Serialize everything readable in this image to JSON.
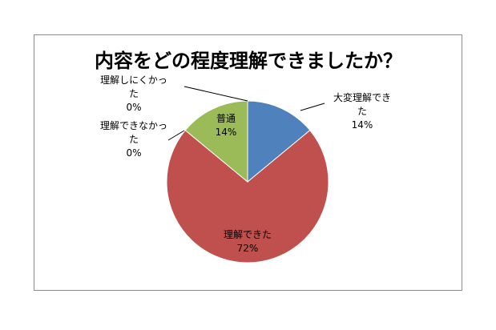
{
  "chart_data": {
    "type": "pie",
    "title": "内容をどの程度理解できましたか？",
    "slices": [
      {
        "label_lines": [
          "大変理解でき",
          "た"
        ],
        "value_label": "14%",
        "value": 14,
        "color": "#4f81bd"
      },
      {
        "label_lines": [
          "理解できた"
        ],
        "value_label": "72%",
        "value": 72,
        "color": "#c0504d"
      },
      {
        "label_lines": [
          "理解できなかっ",
          "た"
        ],
        "value_label": "0%",
        "value": 0,
        "color": "#8064a2"
      },
      {
        "label_lines": [
          "理解しにくかっ",
          "た"
        ],
        "value_label": "0%",
        "value": 0,
        "color": "#4bacc6"
      },
      {
        "label_lines": [
          "普通"
        ],
        "value_label": "14%",
        "value": 14,
        "color": "#9bbb59"
      }
    ],
    "legend": "none"
  }
}
